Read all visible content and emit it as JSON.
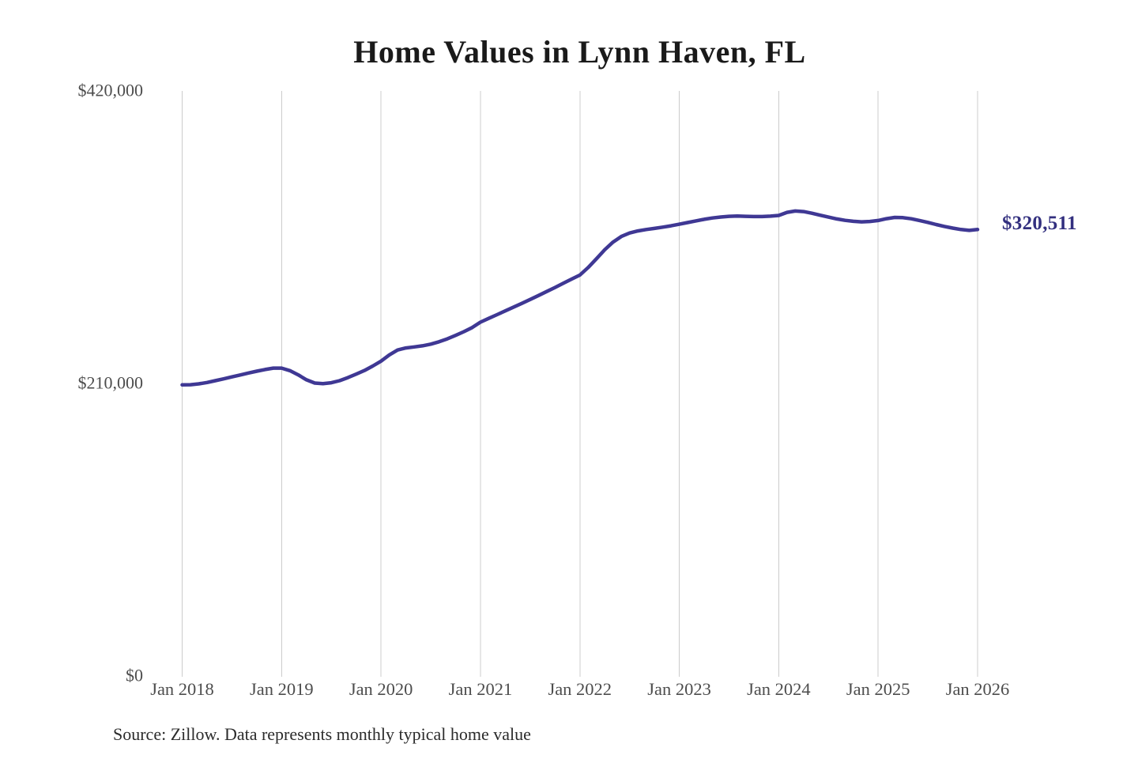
{
  "page": {
    "title": "Home Values in Lynn Haven, FL",
    "source_note": "Source: Zillow. Data represents monthly typical home value"
  },
  "colors": {
    "line": "#3f3894",
    "end_label": "#33307f",
    "gridline": "#cccccc",
    "background": "#ffffff"
  },
  "chart_data": {
    "type": "line",
    "title": "Home Values in Lynn Haven, FL",
    "series_name": "Typical home value",
    "x_start": "Jan 2018",
    "x_end": "Jan 2026",
    "x_frequency": "monthly",
    "ylim": [
      0,
      420000
    ],
    "grid": "vertical-yearly",
    "legend": "none",
    "end_label": "$320,511",
    "end_value": 320511,
    "y_ticks": [
      {
        "label": "$420,000",
        "value": 420000
      },
      {
        "label": "$210,000",
        "value": 210000
      },
      {
        "label": "$0",
        "value": 0
      }
    ],
    "x_ticks": [
      {
        "label": "Jan 2018",
        "month_index": 0
      },
      {
        "label": "Jan 2019",
        "month_index": 12
      },
      {
        "label": "Jan 2020",
        "month_index": 24
      },
      {
        "label": "Jan 2021",
        "month_index": 36
      },
      {
        "label": "Jan 2022",
        "month_index": 48
      },
      {
        "label": "Jan 2023",
        "month_index": 60
      },
      {
        "label": "Jan 2024",
        "month_index": 72
      },
      {
        "label": "Jan 2025",
        "month_index": 84
      },
      {
        "label": "Jan 2026",
        "month_index": 96
      }
    ],
    "values": [
      209000,
      209100,
      209700,
      210700,
      212000,
      213300,
      214700,
      216100,
      217500,
      218800,
      220000,
      221000,
      221000,
      219200,
      216200,
      212600,
      210300,
      209900,
      210500,
      212000,
      214200,
      216700,
      219300,
      222500,
      226000,
      230500,
      234000,
      235500,
      236200,
      237000,
      238200,
      239900,
      242000,
      244500,
      247200,
      250100,
      254000,
      256700,
      259400,
      262100,
      264800,
      267500,
      270300,
      273100,
      276000,
      278900,
      281900,
      284900,
      287800,
      293200,
      299500,
      306000,
      311500,
      315500,
      318000,
      319500,
      320500,
      321300,
      322200,
      323200,
      324300,
      325500,
      326700,
      327800,
      328800,
      329500,
      330000,
      330200,
      330000,
      329800,
      329800,
      330100,
      330600,
      332800,
      333800,
      333400,
      332200,
      330800,
      329400,
      328100,
      327100,
      326400,
      326000,
      326300,
      327000,
      328300,
      329200,
      329000,
      328200,
      327000,
      325600,
      324100,
      322700,
      321500,
      320500,
      319900,
      320511
    ]
  }
}
